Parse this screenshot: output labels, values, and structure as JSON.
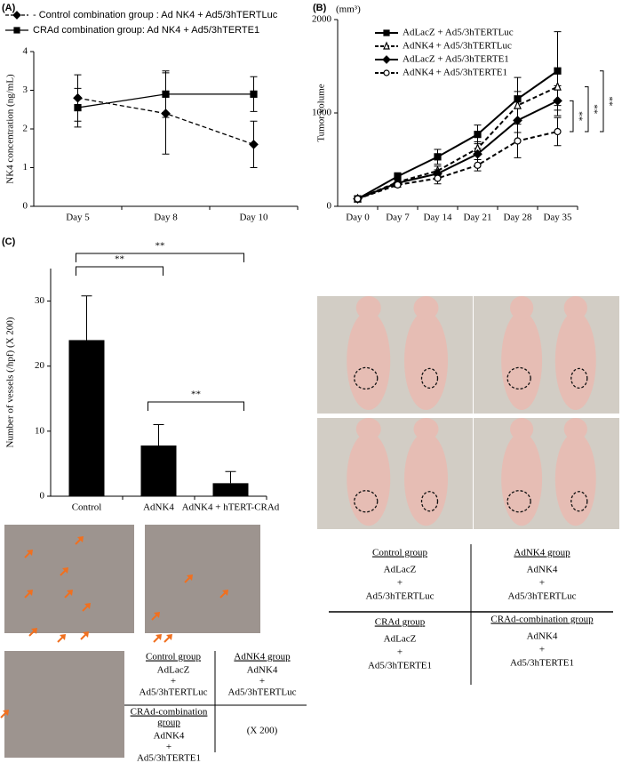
{
  "chart_data": [
    {
      "type": "line",
      "title": "(A)",
      "y_label": "NK4 concentration (ng/mL)",
      "categories": [
        "Day 5",
        "Day 8",
        "Day 10"
      ],
      "ylim": [
        0,
        4
      ],
      "yticks": [
        0,
        1,
        2,
        3,
        4
      ],
      "series": [
        {
          "name": "- Control combination group : Ad NK4 + Ad5/3hTERTLuc",
          "color": "#000000",
          "marker": "diamond",
          "filled": true,
          "dash": true,
          "values": [
            2.8,
            2.4,
            1.6
          ],
          "errors": [
            0.6,
            1.05,
            0.6
          ]
        },
        {
          "name": "CRAd combination group: Ad NK4 + Ad5/3hTERTE1",
          "color": "#000000",
          "marker": "square",
          "filled": true,
          "dash": false,
          "values": [
            2.55,
            2.9,
            2.9
          ],
          "errors": [
            0.5,
            0.6,
            0.45
          ]
        }
      ]
    },
    {
      "type": "line",
      "title": "(B)",
      "y_label": "Tumor volume",
      "y_unit": "(mm³)",
      "categories": [
        "Day 0",
        "Day 7",
        "Day 14",
        "Day 21",
        "Day 28",
        "Day 35"
      ],
      "ylim": [
        0,
        2000
      ],
      "yticks": [
        0,
        1000,
        2000
      ],
      "series": [
        {
          "name": "AdLacZ + Ad5/3hTERTLuc",
          "color": "#000000",
          "marker": "square",
          "filled": true,
          "dash": false,
          "values": [
            80,
            320,
            530,
            770,
            1150,
            1450
          ],
          "errors": [
            20,
            40,
            80,
            100,
            230,
            420
          ]
        },
        {
          "name": "AdNK4 + Ad5/3hTERTLuc",
          "color": "#000000",
          "marker": "triangle",
          "filled": false,
          "dash": true,
          "values": [
            80,
            260,
            380,
            620,
            1080,
            1280
          ],
          "errors": [
            15,
            30,
            50,
            70,
            150,
            200
          ]
        },
        {
          "name": "AdLacZ + Ad5/3hTERTE1",
          "color": "#000000",
          "marker": "diamond",
          "filled": true,
          "dash": false,
          "values": [
            80,
            250,
            350,
            560,
            920,
            1130
          ],
          "errors": [
            15,
            30,
            40,
            60,
            130,
            160
          ]
        },
        {
          "name": "AdNK4 + Ad5/3hTERTE1",
          "color": "#000000",
          "marker": "circle",
          "filled": false,
          "dash": true,
          "values": [
            80,
            230,
            300,
            440,
            700,
            800
          ],
          "errors": [
            15,
            25,
            60,
            60,
            180,
            150
          ]
        }
      ],
      "annotations": [
        "**",
        "**",
        "**"
      ]
    },
    {
      "type": "bar",
      "title": "(C)",
      "y_label": "Number of vessels (/hpf) (X 200)",
      "categories": [
        "Control",
        "AdNK4",
        "AdNK4 + hTERT-CRAd"
      ],
      "values": [
        24,
        7.8,
        2
      ],
      "errors": [
        6.8,
        3.2,
        1.8
      ],
      "color": "#000000",
      "ylim": [
        0,
        35
      ],
      "yticks": [
        0,
        10,
        20,
        30
      ],
      "annotations": [
        "**",
        "**",
        "**"
      ]
    }
  ],
  "mouse_groups": [
    {
      "title": "Control group",
      "lines": [
        "AdLacZ",
        "+",
        "Ad5/3hTERTLuc"
      ]
    },
    {
      "title": "AdNK4 group",
      "lines": [
        "AdNK4",
        "+",
        "Ad5/3hTERTLuc"
      ]
    },
    {
      "title": "CRAd group",
      "lines": [
        "AdLacZ",
        "+",
        "Ad5/3hTERTE1"
      ]
    },
    {
      "title": "CRAd-combination group",
      "lines": [
        "AdNK4",
        "+",
        "Ad5/3hTERTE1"
      ]
    }
  ],
  "vessel_groups": [
    {
      "title": [
        "Control group"
      ],
      "lines": [
        "AdLacZ",
        "+",
        "Ad5/3hTERTLuc"
      ]
    },
    {
      "title": [
        "AdNK4 group"
      ],
      "lines": [
        "AdNK4",
        "+",
        "Ad5/3hTERTLuc"
      ]
    },
    {
      "title": [
        "CRAd-combination",
        "group"
      ],
      "lines": [
        "AdNK4",
        "+",
        "Ad5/3hTERTE1"
      ]
    }
  ],
  "magnification": "(X 200)"
}
